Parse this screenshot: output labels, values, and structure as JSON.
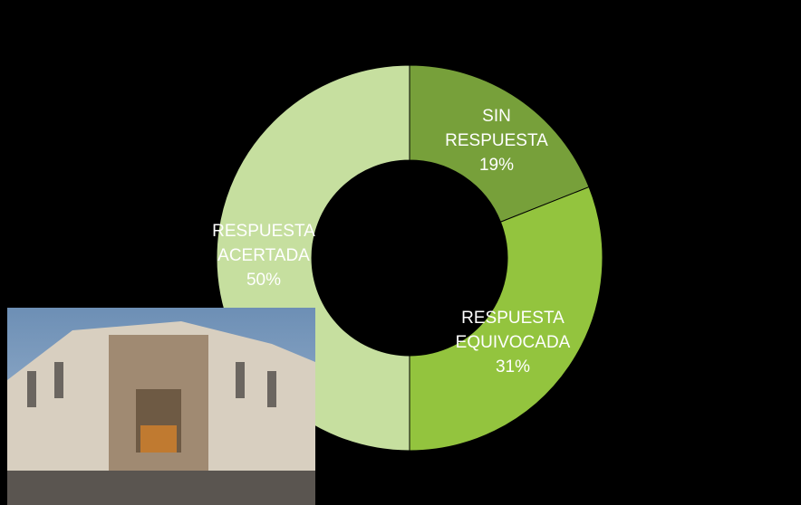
{
  "chart_data": {
    "type": "donut",
    "categories": [
      "SIN RESPUESTA",
      "RESPUESTA EQUIVOCADA",
      "RESPUESTA ACERTADA"
    ],
    "values": [
      19,
      31,
      50
    ],
    "value_labels": [
      "19%",
      "31%",
      "50%"
    ],
    "colors": [
      "#77a03a",
      "#93c43e",
      "#c6df9f"
    ]
  }
}
